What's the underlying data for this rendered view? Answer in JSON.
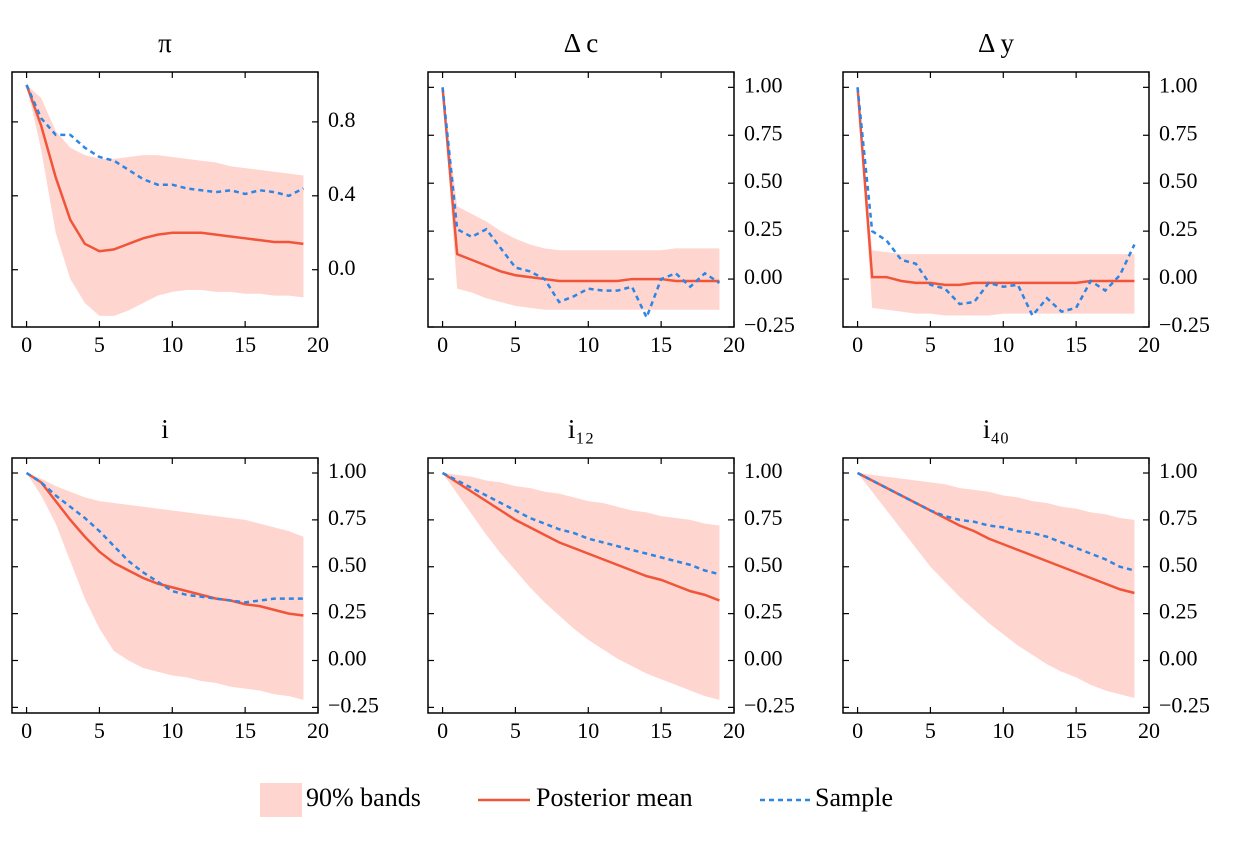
{
  "chart_data": [
    {
      "type": "line",
      "title": "π",
      "x": [
        0,
        1,
        2,
        3,
        4,
        5,
        6,
        7,
        8,
        9,
        10,
        11,
        12,
        13,
        14,
        15,
        16,
        17,
        18,
        19
      ],
      "xlim": [
        -1,
        20
      ],
      "xticks": [
        0,
        5,
        10,
        15,
        20
      ],
      "ylim": [
        -0.31,
        1.07
      ],
      "yticks": [
        {
          "value": 0,
          "label": "0.0"
        },
        {
          "value": 0.4,
          "label": "0.4"
        },
        {
          "value": 0.8,
          "label": "0.8"
        }
      ],
      "band": {
        "name": "90% bands",
        "color": "#ffd5d0",
        "lower": [
          1.0,
          0.65,
          0.2,
          -0.05,
          -0.18,
          -0.25,
          -0.25,
          -0.22,
          -0.18,
          -0.14,
          -0.12,
          -0.11,
          -0.11,
          -0.12,
          -0.12,
          -0.13,
          -0.13,
          -0.14,
          -0.14,
          -0.15
        ],
        "upper": [
          1.0,
          0.93,
          0.75,
          0.66,
          0.62,
          0.6,
          0.6,
          0.61,
          0.62,
          0.62,
          0.61,
          0.6,
          0.59,
          0.58,
          0.56,
          0.55,
          0.54,
          0.53,
          0.52,
          0.51
        ]
      },
      "series": [
        {
          "name": "Posterior mean",
          "color": "#f0553a",
          "style": "solid",
          "values": [
            1.0,
            0.78,
            0.5,
            0.27,
            0.14,
            0.1,
            0.11,
            0.14,
            0.17,
            0.19,
            0.2,
            0.2,
            0.2,
            0.19,
            0.18,
            0.17,
            0.16,
            0.15,
            0.15,
            0.14
          ]
        },
        {
          "name": "Sample",
          "color": "#2b86e6",
          "style": "dashed",
          "values": [
            1.0,
            0.82,
            0.73,
            0.73,
            0.66,
            0.61,
            0.59,
            0.54,
            0.49,
            0.46,
            0.46,
            0.44,
            0.43,
            0.42,
            0.43,
            0.41,
            0.43,
            0.42,
            0.4,
            0.44
          ]
        }
      ]
    },
    {
      "type": "line",
      "title": "Δ c",
      "x": [
        0,
        1,
        2,
        3,
        4,
        5,
        6,
        7,
        8,
        9,
        10,
        11,
        12,
        13,
        14,
        15,
        16,
        17,
        18,
        19
      ],
      "xlim": [
        -1,
        20
      ],
      "xticks": [
        0,
        5,
        10,
        15,
        20
      ],
      "ylim": [
        -0.25,
        1.08
      ],
      "yticks": [
        {
          "value": -0.25,
          "label": "−0.25"
        },
        {
          "value": 0,
          "label": "0.00"
        },
        {
          "value": 0.25,
          "label": "0.25"
        },
        {
          "value": 0.5,
          "label": "0.50"
        },
        {
          "value": 0.75,
          "label": "0.75"
        },
        {
          "value": 1,
          "label": "1.00"
        }
      ],
      "band": {
        "color": "#ffd5d0",
        "lower": [
          1.0,
          -0.05,
          -0.07,
          -0.1,
          -0.12,
          -0.14,
          -0.15,
          -0.16,
          -0.16,
          -0.16,
          -0.16,
          -0.16,
          -0.16,
          -0.16,
          -0.16,
          -0.16,
          -0.16,
          -0.16,
          -0.16,
          -0.16
        ],
        "upper": [
          1.0,
          0.38,
          0.34,
          0.3,
          0.25,
          0.21,
          0.18,
          0.16,
          0.15,
          0.15,
          0.15,
          0.15,
          0.15,
          0.15,
          0.15,
          0.15,
          0.16,
          0.16,
          0.16,
          0.16
        ]
      },
      "series": [
        {
          "color": "#f0553a",
          "style": "solid",
          "values": [
            1.0,
            0.13,
            0.1,
            0.07,
            0.04,
            0.02,
            0.01,
            0.0,
            -0.01,
            -0.01,
            -0.01,
            -0.01,
            -0.01,
            0.0,
            0.0,
            0.0,
            -0.01,
            -0.01,
            -0.01,
            -0.01
          ]
        },
        {
          "color": "#2b86e6",
          "style": "dashed",
          "values": [
            1.0,
            0.26,
            0.22,
            0.26,
            0.16,
            0.06,
            0.04,
            0.0,
            -0.12,
            -0.09,
            -0.05,
            -0.06,
            -0.06,
            -0.04,
            -0.2,
            0.0,
            0.03,
            -0.04,
            0.03,
            -0.02
          ]
        }
      ]
    },
    {
      "type": "line",
      "title": "Δ y",
      "x": [
        0,
        1,
        2,
        3,
        4,
        5,
        6,
        7,
        8,
        9,
        10,
        11,
        12,
        13,
        14,
        15,
        16,
        17,
        18,
        19
      ],
      "xlim": [
        -1,
        20
      ],
      "xticks": [
        0,
        5,
        10,
        15,
        20
      ],
      "ylim": [
        -0.25,
        1.08
      ],
      "yticks": [
        {
          "value": -0.25,
          "label": "−0.25"
        },
        {
          "value": 0,
          "label": "0.00"
        },
        {
          "value": 0.25,
          "label": "0.25"
        },
        {
          "value": 0.5,
          "label": "0.50"
        },
        {
          "value": 0.75,
          "label": "0.75"
        },
        {
          "value": 1,
          "label": "1.00"
        }
      ],
      "band": {
        "color": "#ffd5d0",
        "lower": [
          1.0,
          -0.15,
          -0.16,
          -0.17,
          -0.18,
          -0.18,
          -0.19,
          -0.19,
          -0.19,
          -0.19,
          -0.18,
          -0.18,
          -0.18,
          -0.18,
          -0.18,
          -0.18,
          -0.18,
          -0.18,
          -0.18,
          -0.18
        ],
        "upper": [
          1.0,
          0.15,
          0.14,
          0.13,
          0.13,
          0.13,
          0.13,
          0.13,
          0.13,
          0.13,
          0.13,
          0.13,
          0.13,
          0.13,
          0.13,
          0.13,
          0.13,
          0.13,
          0.13,
          0.13
        ]
      },
      "series": [
        {
          "color": "#f0553a",
          "style": "solid",
          "values": [
            1.0,
            0.01,
            0.01,
            -0.01,
            -0.02,
            -0.02,
            -0.03,
            -0.03,
            -0.02,
            -0.02,
            -0.02,
            -0.02,
            -0.02,
            -0.02,
            -0.02,
            -0.02,
            -0.01,
            -0.01,
            -0.01,
            -0.01
          ]
        },
        {
          "color": "#2b86e6",
          "style": "dashed",
          "values": [
            1.0,
            0.25,
            0.2,
            0.1,
            0.08,
            -0.03,
            -0.05,
            -0.13,
            -0.12,
            -0.02,
            -0.04,
            -0.03,
            -0.19,
            -0.1,
            -0.17,
            -0.15,
            -0.01,
            -0.06,
            0.02,
            0.18
          ]
        }
      ]
    },
    {
      "type": "line",
      "title": "i",
      "x": [
        0,
        1,
        2,
        3,
        4,
        5,
        6,
        7,
        8,
        9,
        10,
        11,
        12,
        13,
        14,
        15,
        16,
        17,
        18,
        19
      ],
      "xlim": [
        -1,
        20
      ],
      "xticks": [
        0,
        5,
        10,
        15,
        20
      ],
      "ylim": [
        -0.28,
        1.08
      ],
      "yticks": [
        {
          "value": -0.25,
          "label": "−0.25"
        },
        {
          "value": 0,
          "label": "0.00"
        },
        {
          "value": 0.25,
          "label": "0.25"
        },
        {
          "value": 0.5,
          "label": "0.50"
        },
        {
          "value": 0.75,
          "label": "0.75"
        },
        {
          "value": 1,
          "label": "1.00"
        }
      ],
      "band": {
        "color": "#ffd5d0",
        "lower": [
          1.0,
          0.88,
          0.73,
          0.53,
          0.33,
          0.17,
          0.05,
          0.0,
          -0.04,
          -0.06,
          -0.08,
          -0.09,
          -0.11,
          -0.12,
          -0.14,
          -0.15,
          -0.16,
          -0.18,
          -0.19,
          -0.21
        ],
        "upper": [
          1.0,
          0.97,
          0.93,
          0.9,
          0.87,
          0.85,
          0.84,
          0.83,
          0.82,
          0.81,
          0.8,
          0.79,
          0.78,
          0.77,
          0.76,
          0.75,
          0.73,
          0.71,
          0.69,
          0.66
        ]
      },
      "series": [
        {
          "color": "#f0553a",
          "style": "solid",
          "values": [
            1.0,
            0.95,
            0.85,
            0.75,
            0.66,
            0.58,
            0.52,
            0.48,
            0.44,
            0.41,
            0.39,
            0.37,
            0.35,
            0.33,
            0.32,
            0.3,
            0.29,
            0.27,
            0.25,
            0.24
          ]
        },
        {
          "color": "#2b86e6",
          "style": "dashed",
          "values": [
            1.0,
            0.95,
            0.88,
            0.82,
            0.76,
            0.69,
            0.61,
            0.53,
            0.47,
            0.42,
            0.37,
            0.35,
            0.34,
            0.33,
            0.32,
            0.31,
            0.32,
            0.33,
            0.33,
            0.33
          ]
        }
      ]
    },
    {
      "type": "line",
      "title": "i₁₂",
      "x": [
        0,
        1,
        2,
        3,
        4,
        5,
        6,
        7,
        8,
        9,
        10,
        11,
        12,
        13,
        14,
        15,
        16,
        17,
        18,
        19
      ],
      "xlim": [
        -1,
        20
      ],
      "xticks": [
        0,
        5,
        10,
        15,
        20
      ],
      "ylim": [
        -0.28,
        1.08
      ],
      "yticks": [
        {
          "value": -0.25,
          "label": "−0.25"
        },
        {
          "value": 0,
          "label": "0.00"
        },
        {
          "value": 0.25,
          "label": "0.25"
        },
        {
          "value": 0.5,
          "label": "0.50"
        },
        {
          "value": 0.75,
          "label": "0.75"
        },
        {
          "value": 1,
          "label": "1.00"
        }
      ],
      "band": {
        "color": "#ffd5d0",
        "lower": [
          1.0,
          0.89,
          0.78,
          0.67,
          0.57,
          0.48,
          0.39,
          0.31,
          0.24,
          0.17,
          0.11,
          0.06,
          0.01,
          -0.03,
          -0.07,
          -0.1,
          -0.13,
          -0.16,
          -0.19,
          -0.21
        ],
        "upper": [
          1.0,
          0.99,
          0.98,
          0.96,
          0.95,
          0.93,
          0.92,
          0.9,
          0.89,
          0.87,
          0.85,
          0.84,
          0.82,
          0.8,
          0.79,
          0.77,
          0.76,
          0.75,
          0.73,
          0.72
        ]
      },
      "series": [
        {
          "color": "#f0553a",
          "style": "solid",
          "values": [
            1.0,
            0.95,
            0.9,
            0.85,
            0.8,
            0.75,
            0.71,
            0.67,
            0.63,
            0.6,
            0.57,
            0.54,
            0.51,
            0.48,
            0.45,
            0.43,
            0.4,
            0.37,
            0.35,
            0.32
          ]
        },
        {
          "color": "#2b86e6",
          "style": "dashed",
          "values": [
            1.0,
            0.96,
            0.92,
            0.88,
            0.84,
            0.8,
            0.76,
            0.73,
            0.7,
            0.68,
            0.65,
            0.63,
            0.61,
            0.59,
            0.57,
            0.55,
            0.53,
            0.51,
            0.48,
            0.46
          ]
        }
      ]
    },
    {
      "type": "line",
      "title": "i₄₀",
      "x": [
        0,
        1,
        2,
        3,
        4,
        5,
        6,
        7,
        8,
        9,
        10,
        11,
        12,
        13,
        14,
        15,
        16,
        17,
        18,
        19
      ],
      "xlim": [
        -1,
        20
      ],
      "xticks": [
        0,
        5,
        10,
        15,
        20
      ],
      "ylim": [
        -0.28,
        1.08
      ],
      "yticks": [
        {
          "value": -0.25,
          "label": "−0.25"
        },
        {
          "value": 0,
          "label": "0.00"
        },
        {
          "value": 0.25,
          "label": "0.25"
        },
        {
          "value": 0.5,
          "label": "0.50"
        },
        {
          "value": 0.75,
          "label": "0.75"
        },
        {
          "value": 1,
          "label": "1.00"
        }
      ],
      "band": {
        "color": "#ffd5d0",
        "lower": [
          1.0,
          0.9,
          0.8,
          0.7,
          0.6,
          0.5,
          0.42,
          0.34,
          0.27,
          0.2,
          0.14,
          0.08,
          0.03,
          -0.02,
          -0.06,
          -0.09,
          -0.13,
          -0.16,
          -0.18,
          -0.2
        ],
        "upper": [
          1.0,
          0.99,
          0.98,
          0.97,
          0.96,
          0.95,
          0.94,
          0.92,
          0.91,
          0.9,
          0.88,
          0.87,
          0.85,
          0.84,
          0.82,
          0.81,
          0.79,
          0.78,
          0.76,
          0.75
        ]
      },
      "series": [
        {
          "color": "#f0553a",
          "style": "solid",
          "values": [
            1.0,
            0.96,
            0.92,
            0.88,
            0.84,
            0.8,
            0.76,
            0.72,
            0.69,
            0.65,
            0.62,
            0.59,
            0.56,
            0.53,
            0.5,
            0.47,
            0.44,
            0.41,
            0.38,
            0.36
          ]
        },
        {
          "color": "#2b86e6",
          "style": "dashed",
          "values": [
            1.0,
            0.96,
            0.92,
            0.88,
            0.84,
            0.8,
            0.77,
            0.75,
            0.74,
            0.72,
            0.71,
            0.69,
            0.68,
            0.66,
            0.63,
            0.6,
            0.57,
            0.54,
            0.5,
            0.48
          ]
        }
      ]
    }
  ]
}
